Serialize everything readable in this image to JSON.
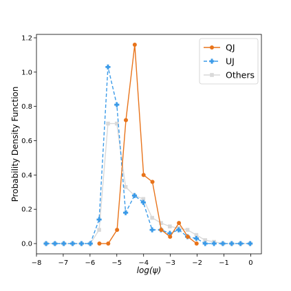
{
  "chart_data": {
    "type": "line",
    "xlabel": "log(ψ)",
    "ylabel": "Probability Density Function",
    "xlim": [
      -8,
      0.4
    ],
    "ylim": [
      -0.06,
      1.22
    ],
    "xticks": [
      -8,
      -7,
      -6,
      -5,
      -4,
      -3,
      -2,
      -1,
      0
    ],
    "xtick_labels": [
      "−8",
      "−7",
      "−6",
      "−5",
      "−4",
      "−3",
      "−2",
      "−1",
      "0"
    ],
    "yticks": [
      0.0,
      0.2,
      0.4,
      0.6,
      0.8,
      1.0,
      1.2
    ],
    "ytick_labels": [
      "0.0",
      "0.2",
      "0.4",
      "0.6",
      "0.8",
      "1.0",
      "1.2"
    ],
    "grid": false,
    "legend_position": "top-right",
    "series": [
      {
        "name": "QJ",
        "color": "#e8731a",
        "linestyle": "solid",
        "marker": "circle",
        "x": [
          -5.65,
          -5.32,
          -4.99,
          -4.66,
          -4.33,
          -4.0,
          -3.67,
          -3.34,
          -3.01,
          -2.68,
          -2.35,
          -2.02
        ],
        "y": [
          0.0,
          0.0,
          0.08,
          0.72,
          1.16,
          0.4,
          0.36,
          0.08,
          0.04,
          0.12,
          0.04,
          0.0
        ]
      },
      {
        "name": "UJ",
        "color": "#3a9ae8",
        "linestyle": "dashed",
        "marker": "plus",
        "x": [
          -7.64,
          -7.31,
          -6.98,
          -6.65,
          -6.32,
          -5.99,
          -5.66,
          -5.33,
          -5.0,
          -4.67,
          -4.34,
          -4.01,
          -3.68,
          -3.35,
          -3.02,
          -2.69,
          -2.36,
          -2.03,
          -1.7,
          -1.37,
          -1.04,
          -0.71,
          -0.38,
          -0.02
        ],
        "y": [
          0.0,
          0.0,
          0.0,
          0.0,
          0.0,
          0.0,
          0.14,
          1.03,
          0.81,
          0.18,
          0.28,
          0.24,
          0.08,
          0.08,
          0.06,
          0.08,
          0.04,
          0.03,
          0.0,
          0.0,
          0.0,
          0.0,
          0.0,
          0.0
        ]
      },
      {
        "name": "Others",
        "color": "#d9d9d9",
        "linestyle": "solid",
        "marker": "square",
        "x": [
          -7.64,
          -7.31,
          -6.98,
          -6.65,
          -6.32,
          -5.99,
          -5.66,
          -5.33,
          -5.0,
          -4.67,
          -4.34,
          -4.01,
          -3.68,
          -3.35,
          -3.02,
          -2.69,
          -2.36,
          -2.03,
          -1.7,
          -1.37,
          -1.04,
          -0.71,
          -0.38,
          -0.02
        ],
        "y": [
          0.0,
          0.0,
          0.0,
          0.0,
          0.0,
          0.0,
          0.08,
          0.7,
          0.7,
          0.33,
          0.28,
          0.26,
          0.15,
          0.12,
          0.1,
          0.09,
          0.08,
          0.05,
          0.02,
          0.01,
          0.0,
          0.0,
          0.0,
          0.0
        ]
      }
    ]
  }
}
